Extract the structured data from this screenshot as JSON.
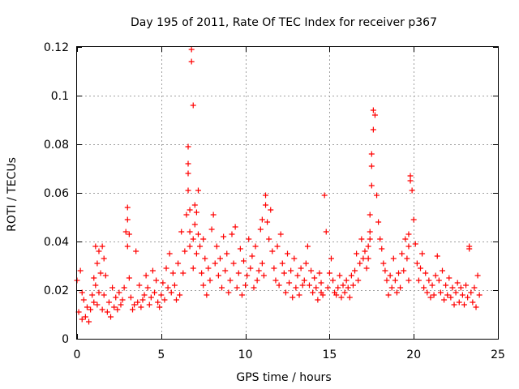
{
  "chart_data": {
    "type": "scatter",
    "title": "Day 195 of 2011, Rate Of TEC Index for receiver p367",
    "xlabel": "GPS time / hours",
    "ylabel": "ROTI / TECUs",
    "xlim": [
      0,
      25
    ],
    "ylim": [
      0,
      0.12
    ],
    "xticks": [
      0,
      5,
      10,
      15,
      20,
      25
    ],
    "yticks": [
      0,
      0.02,
      0.04,
      0.06,
      0.08,
      0.1,
      0.12
    ],
    "xtick_labels": [
      "0",
      "5",
      "10",
      "15",
      "20",
      "25"
    ],
    "ytick_labels": [
      "0",
      "0.02",
      "0.04",
      "0.06",
      "0.08",
      "0.1",
      "0.12"
    ],
    "grid": true,
    "marker": "plus",
    "series": [
      {
        "name": "ROTI",
        "color": "#ff0000",
        "x": [
          0.0,
          0.1,
          0.2,
          0.3,
          0.3,
          0.4,
          0.5,
          0.6,
          0.7,
          0.8,
          0.9,
          1.0,
          1.0,
          1.1,
          1.1,
          1.2,
          1.2,
          1.3,
          1.3,
          1.4,
          1.5,
          1.5,
          1.6,
          1.6,
          1.7,
          1.8,
          1.9,
          2.0,
          2.1,
          2.2,
          2.3,
          2.4,
          2.5,
          2.6,
          2.7,
          2.8,
          2.9,
          3.0,
          3.0,
          3.0,
          3.1,
          3.1,
          3.2,
          3.3,
          3.4,
          3.5,
          3.6,
          3.7,
          3.8,
          3.9,
          4.0,
          4.1,
          4.2,
          4.3,
          4.4,
          4.5,
          4.6,
          4.7,
          4.8,
          4.9,
          5.0,
          5.1,
          5.2,
          5.3,
          5.4,
          5.5,
          5.6,
          5.7,
          5.8,
          5.9,
          6.0,
          6.1,
          6.2,
          6.3,
          6.4,
          6.5,
          6.6,
          6.6,
          6.6,
          6.6,
          6.7,
          6.7,
          6.7,
          6.8,
          6.8,
          6.9,
          6.9,
          6.9,
          7.0,
          7.0,
          7.1,
          7.1,
          7.2,
          7.2,
          7.3,
          7.4,
          7.5,
          7.5,
          7.6,
          7.7,
          7.8,
          7.9,
          8.0,
          8.1,
          8.2,
          8.3,
          8.4,
          8.5,
          8.6,
          8.7,
          8.8,
          8.9,
          9.0,
          9.1,
          9.2,
          9.3,
          9.4,
          9.5,
          9.6,
          9.7,
          9.8,
          9.9,
          10.0,
          10.1,
          10.2,
          10.3,
          10.4,
          10.5,
          10.6,
          10.7,
          10.8,
          10.9,
          11.0,
          11.0,
          11.1,
          11.2,
          11.2,
          11.3,
          11.4,
          11.5,
          11.6,
          11.7,
          11.8,
          11.9,
          12.0,
          12.1,
          12.2,
          12.3,
          12.4,
          12.5,
          12.6,
          12.7,
          12.8,
          12.9,
          13.0,
          13.1,
          13.2,
          13.3,
          13.4,
          13.5,
          13.6,
          13.7,
          13.8,
          13.9,
          14.0,
          14.1,
          14.2,
          14.3,
          14.4,
          14.5,
          14.5,
          14.6,
          14.7,
          14.8,
          14.9,
          15.0,
          15.1,
          15.2,
          15.3,
          15.4,
          15.5,
          15.6,
          15.7,
          15.8,
          15.9,
          16.0,
          16.1,
          16.2,
          16.3,
          16.4,
          16.5,
          16.6,
          16.7,
          16.8,
          16.9,
          17.0,
          17.1,
          17.2,
          17.3,
          17.3,
          17.4,
          17.4,
          17.4,
          17.5,
          17.5,
          17.5,
          17.6,
          17.6,
          17.7,
          17.8,
          17.9,
          18.0,
          18.1,
          18.2,
          18.3,
          18.4,
          18.5,
          18.6,
          18.7,
          18.8,
          18.9,
          19.0,
          19.1,
          19.2,
          19.3,
          19.4,
          19.5,
          19.6,
          19.7,
          19.7,
          19.7,
          19.8,
          19.8,
          19.9,
          20.0,
          20.1,
          20.2,
          20.3,
          20.4,
          20.5,
          20.6,
          20.7,
          20.8,
          20.9,
          21.0,
          21.1,
          21.2,
          21.3,
          21.4,
          21.5,
          21.6,
          21.7,
          21.8,
          21.9,
          22.0,
          22.1,
          22.2,
          22.3,
          22.4,
          22.5,
          22.6,
          22.7,
          22.8,
          22.9,
          23.0,
          23.1,
          23.2,
          23.3,
          23.3,
          23.4,
          23.5,
          23.6,
          23.7,
          23.8,
          23.9
        ],
        "y": [
          0.024,
          0.011,
          0.028,
          0.019,
          0.008,
          0.016,
          0.009,
          0.013,
          0.007,
          0.012,
          0.018,
          0.025,
          0.015,
          0.038,
          0.022,
          0.031,
          0.014,
          0.036,
          0.019,
          0.027,
          0.038,
          0.012,
          0.033,
          0.018,
          0.026,
          0.011,
          0.015,
          0.009,
          0.021,
          0.013,
          0.017,
          0.012,
          0.019,
          0.014,
          0.016,
          0.021,
          0.044,
          0.054,
          0.049,
          0.038,
          0.043,
          0.025,
          0.017,
          0.012,
          0.014,
          0.036,
          0.015,
          0.022,
          0.013,
          0.016,
          0.018,
          0.026,
          0.021,
          0.014,
          0.017,
          0.028,
          0.019,
          0.024,
          0.015,
          0.013,
          0.018,
          0.023,
          0.016,
          0.029,
          0.021,
          0.035,
          0.019,
          0.027,
          0.022,
          0.016,
          0.031,
          0.018,
          0.044,
          0.027,
          0.036,
          0.051,
          0.061,
          0.072,
          0.079,
          0.068,
          0.053,
          0.044,
          0.038,
          0.119,
          0.114,
          0.096,
          0.041,
          0.029,
          0.055,
          0.047,
          0.052,
          0.035,
          0.061,
          0.043,
          0.038,
          0.027,
          0.041,
          0.022,
          0.033,
          0.018,
          0.029,
          0.024,
          0.045,
          0.051,
          0.031,
          0.038,
          0.026,
          0.033,
          0.021,
          0.042,
          0.028,
          0.035,
          0.019,
          0.024,
          0.043,
          0.031,
          0.046,
          0.021,
          0.027,
          0.037,
          0.018,
          0.032,
          0.022,
          0.026,
          0.041,
          0.029,
          0.034,
          0.021,
          0.038,
          0.024,
          0.028,
          0.045,
          0.031,
          0.049,
          0.026,
          0.055,
          0.059,
          0.048,
          0.041,
          0.053,
          0.036,
          0.029,
          0.024,
          0.038,
          0.022,
          0.043,
          0.031,
          0.027,
          0.019,
          0.035,
          0.023,
          0.028,
          0.017,
          0.033,
          0.021,
          0.026,
          0.018,
          0.029,
          0.022,
          0.024,
          0.031,
          0.038,
          0.022,
          0.028,
          0.019,
          0.025,
          0.021,
          0.016,
          0.027,
          0.019,
          0.023,
          0.018,
          0.059,
          0.044,
          0.021,
          0.027,
          0.033,
          0.024,
          0.019,
          0.018,
          0.021,
          0.026,
          0.017,
          0.022,
          0.019,
          0.024,
          0.021,
          0.017,
          0.026,
          0.022,
          0.028,
          0.035,
          0.024,
          0.031,
          0.041,
          0.033,
          0.036,
          0.029,
          0.038,
          0.033,
          0.044,
          0.041,
          0.051,
          0.063,
          0.071,
          0.076,
          0.086,
          0.094,
          0.092,
          0.059,
          0.048,
          0.041,
          0.037,
          0.031,
          0.028,
          0.024,
          0.018,
          0.026,
          0.021,
          0.033,
          0.024,
          0.019,
          0.027,
          0.021,
          0.035,
          0.028,
          0.041,
          0.033,
          0.038,
          0.024,
          0.043,
          0.067,
          0.065,
          0.061,
          0.049,
          0.039,
          0.031,
          0.024,
          0.029,
          0.035,
          0.021,
          0.027,
          0.019,
          0.024,
          0.017,
          0.022,
          0.018,
          0.026,
          0.034,
          0.024,
          0.019,
          0.028,
          0.016,
          0.022,
          0.018,
          0.025,
          0.017,
          0.021,
          0.014,
          0.019,
          0.023,
          0.015,
          0.021,
          0.018,
          0.014,
          0.022,
          0.017,
          0.038,
          0.037,
          0.019,
          0.015,
          0.021,
          0.013,
          0.026,
          0.018
        ]
      }
    ]
  }
}
